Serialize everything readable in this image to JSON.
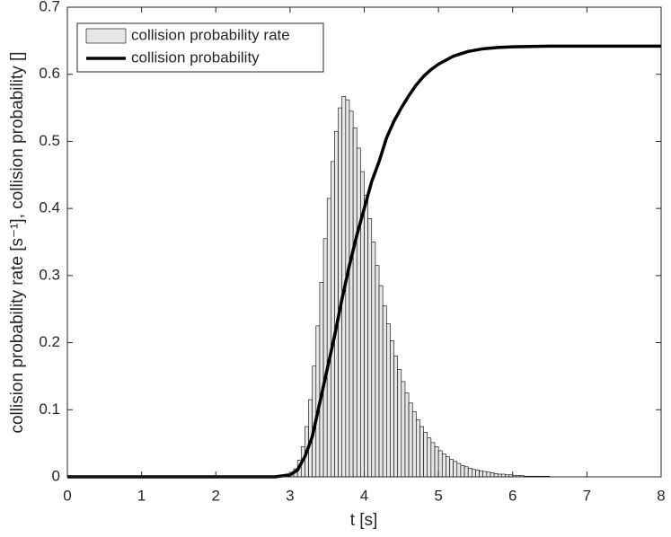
{
  "chart_data": {
    "type": "histogram",
    "xlabel": "t [s]",
    "ylabel": "collision probability rate [s⁻¹], collision probability []",
    "xlim": [
      0,
      8
    ],
    "ylim": [
      0,
      0.7
    ],
    "xticks": [
      0,
      1,
      2,
      3,
      4,
      5,
      6,
      7,
      8
    ],
    "yticks": [
      0,
      0.1,
      0.2,
      0.3,
      0.4,
      0.5,
      0.6,
      0.7
    ],
    "legend": "upper left",
    "series": [
      {
        "name": "collision probability rate",
        "type": "histogram",
        "color": "#e6e6e6",
        "bins": [
          2.9,
          2.95,
          3,
          3.05,
          3.1,
          3.15,
          3.2,
          3.25,
          3.3,
          3.35,
          3.4,
          3.45,
          3.5,
          3.55,
          3.6,
          3.65,
          3.7,
          3.75,
          3.8,
          3.85,
          3.9,
          3.95,
          4,
          4.05,
          4.1,
          4.15,
          4.2,
          4.25,
          4.3,
          4.35,
          4.4,
          4.45,
          4.5,
          4.55,
          4.6,
          4.65,
          4.7,
          4.75,
          4.8,
          4.85,
          4.9,
          4.95,
          5,
          5.05,
          5.1,
          5.15,
          5.2,
          5.25,
          5.3,
          5.35,
          5.4,
          5.45,
          5.5,
          5.55,
          5.6,
          5.65,
          5.7,
          5.75,
          5.8,
          5.85,
          5.9,
          5.95,
          6,
          6.05,
          6.1,
          6.15,
          6.2,
          6.25,
          6.3,
          6.35,
          6.4,
          6.45,
          6.5
        ],
        "values": [
          0.001,
          0.002,
          0.005,
          0.012,
          0.025,
          0.045,
          0.075,
          0.115,
          0.165,
          0.225,
          0.29,
          0.355,
          0.415,
          0.47,
          0.515,
          0.55,
          0.567,
          0.562,
          0.545,
          0.52,
          0.49,
          0.455,
          0.42,
          0.385,
          0.35,
          0.315,
          0.285,
          0.255,
          0.228,
          0.203,
          0.18,
          0.16,
          0.142,
          0.125,
          0.11,
          0.097,
          0.085,
          0.075,
          0.066,
          0.058,
          0.051,
          0.045,
          0.039,
          0.034,
          0.03,
          0.026,
          0.023,
          0.02,
          0.017,
          0.015,
          0.013,
          0.011,
          0.01,
          0.009,
          0.008,
          0.007,
          0.006,
          0.005,
          0.004,
          0.004,
          0.003,
          0.003,
          0.002,
          0.002,
          0.002,
          0.001,
          0.001,
          0.001,
          0.001,
          0.001,
          0.001,
          0.001
        ]
      },
      {
        "name": "collision probability",
        "type": "line",
        "color": "#000000",
        "x": [
          0,
          1,
          2,
          2.8,
          3,
          3.1,
          3.2,
          3.3,
          3.4,
          3.5,
          3.6,
          3.7,
          3.8,
          3.9,
          4,
          4.1,
          4.2,
          4.3,
          4.4,
          4.5,
          4.6,
          4.7,
          4.8,
          4.9,
          5,
          5.2,
          5.4,
          5.6,
          5.8,
          6,
          6.5,
          7,
          8
        ],
        "values": [
          0,
          0,
          0,
          0,
          0.003,
          0.01,
          0.03,
          0.06,
          0.11,
          0.16,
          0.21,
          0.265,
          0.315,
          0.36,
          0.4,
          0.44,
          0.47,
          0.505,
          0.53,
          0.55,
          0.568,
          0.584,
          0.597,
          0.607,
          0.615,
          0.627,
          0.634,
          0.638,
          0.64,
          0.641,
          0.642,
          0.642,
          0.642
        ]
      }
    ]
  }
}
